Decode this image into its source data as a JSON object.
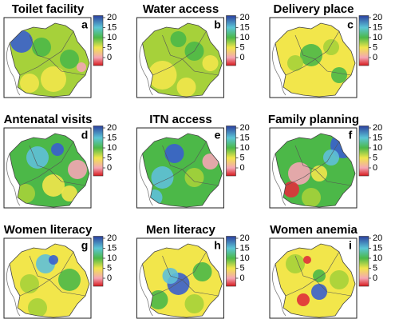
{
  "colorbar": {
    "lim": [
      -4,
      21
    ],
    "ticks": [
      20,
      15,
      10,
      5,
      0
    ]
  },
  "panels": [
    {
      "title": "Toilet facility",
      "letter": "a"
    },
    {
      "title": "Water access",
      "letter": "b"
    },
    {
      "title": "Delivery place",
      "letter": "c"
    },
    {
      "title": "Antenatal visits",
      "letter": "d"
    },
    {
      "title": "ITN access",
      "letter": "e"
    },
    {
      "title": "Family planning",
      "letter": "f"
    },
    {
      "title": "Women literacy",
      "letter": "g"
    },
    {
      "title": "Men literacy",
      "letter": "h"
    },
    {
      "title": "Women anemia",
      "letter": "i"
    }
  ]
}
